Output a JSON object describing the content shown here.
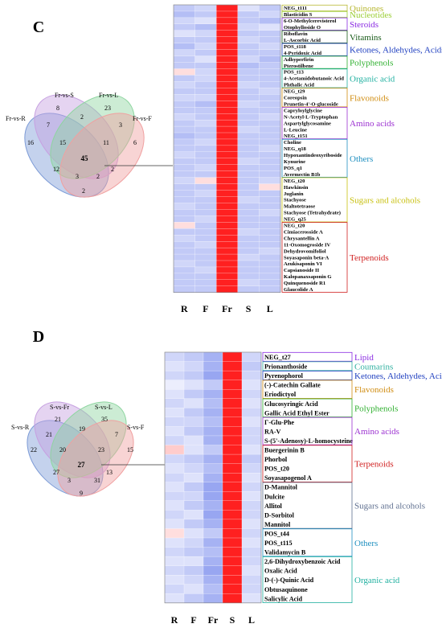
{
  "panels": [
    {
      "letter": "C",
      "venn": {
        "sets": [
          "Fr-vs-R",
          "Fr-vs-S",
          "Fr-vs-L",
          "Fr-vs-F"
        ],
        "colors": [
          "#7d9bd6",
          "#c6a0e0",
          "#8ed5a0",
          "#f0a0a0"
        ],
        "counts": {
          "R": 16,
          "S": 8,
          "L": 23,
          "F": 6,
          "RS": 7,
          "SL": 2,
          "LF": 3,
          "RSL": 15,
          "SLF": 11,
          "RF": 2,
          "RL": 2,
          "RSLF": 45,
          "RSF": 12,
          "RLF": 2,
          "RLF2": 3
        },
        "count_layout": [
          {
            "k": "R",
            "v": "16"
          },
          {
            "k": "S",
            "v": "8"
          },
          {
            "k": "L",
            "v": "23"
          },
          {
            "k": "F",
            "v": "6"
          },
          {
            "k": "RS",
            "v": "7"
          },
          {
            "k": "SL",
            "v": "2"
          },
          {
            "k": "LF",
            "v": "3"
          },
          {
            "k": "RSL",
            "v": "15"
          },
          {
            "k": "SLF",
            "v": "11"
          },
          {
            "k": "RSLF",
            "v": "45"
          },
          {
            "k": "RF",
            "v": "12"
          },
          {
            "k": "RLF",
            "v": "2"
          },
          {
            "k": "SF",
            "v": "3"
          },
          {
            "k": "SLF2",
            "v": "2"
          },
          {
            "k": "RLB",
            "v": "2"
          }
        ]
      },
      "columns": [
        "R",
        "F",
        "Fr",
        "S",
        "L"
      ],
      "rows": [
        "NEG_t111",
        "Blasticidin S",
        "6-O-Methylcerevisterol",
        "Otophylloside O",
        "Riboflavin",
        "L-Ascorbic Acid",
        "POS_t118",
        "4-Pyridoxic Acid",
        "Adhyperfirin",
        "Pterostilbene",
        "POS_t13",
        "4-Acetamidobutanoic Acid",
        "Phthalic Acid",
        "NEG_t29",
        "Coreopsin",
        "Prunetin-4'-O-glucoside",
        "Capryloylglycine",
        "N-Acetyl-L-Tryptophan",
        "Aspartylglycosamine",
        "L-Leucine",
        "NEG_t151",
        "Choline",
        "NEG_q18",
        "Hypoxantindeoxyriboside",
        "Kynurine",
        "POS_q1",
        "Avermectin B1b",
        "NEG_t20",
        "Hawkinsin",
        "Juglanin",
        "Stachyose",
        "Maltotetraose",
        "Stachyose (Tetrahydrate)",
        "NEG_q25",
        "NEG_t20",
        "Cimiacerosside A",
        "Chrysantellin A",
        "11-Oxomogroside IV",
        "Dehydrovomifoliol",
        "Soyasaponin beta-A",
        "Azukisaponin VI",
        "Capsianoside II",
        "Kalopanaxsaponin G",
        "Quinquenoside R1",
        "Glaucolide A"
      ],
      "groups": [
        {
          "label": "Quinones",
          "color": "#b8b832",
          "start": 0,
          "end": 0
        },
        {
          "label": "Nucleotides",
          "color": "#9acd32",
          "start": 1,
          "end": 1
        },
        {
          "label": "Steroids",
          "color": "#8a2be2",
          "start": 2,
          "end": 3
        },
        {
          "label": "Vitamins",
          "color": "#1a5c1a",
          "start": 4,
          "end": 5
        },
        {
          "label": "Ketones, Aldehydes, Acids",
          "color": "#2040c0",
          "start": 6,
          "end": 7
        },
        {
          "label": "Polyphenols",
          "color": "#30b030",
          "start": 8,
          "end": 9
        },
        {
          "label": "Organic acid",
          "color": "#20b0a0",
          "start": 10,
          "end": 12
        },
        {
          "label": "Flavonoids",
          "color": "#d08c10",
          "start": 13,
          "end": 15
        },
        {
          "label": "Amino acids",
          "color": "#9b30d0",
          "start": 16,
          "end": 20
        },
        {
          "label": "Others",
          "color": "#2090c0",
          "start": 21,
          "end": 26
        },
        {
          "label": "Sugars and alcohols",
          "color": "#c8c010",
          "start": 27,
          "end": 33
        },
        {
          "label": "Terpenoids",
          "color": "#d02020",
          "start": 34,
          "end": 44
        }
      ],
      "hot_column": 2
    },
    {
      "letter": "D",
      "venn": {
        "sets": [
          "S-vs-R",
          "S-vs-Fr",
          "S-vs-L",
          "S-vs-F"
        ],
        "colors": [
          "#7d9bd6",
          "#c6a0e0",
          "#8ed5a0",
          "#f0a0a0"
        ],
        "count_layout": [
          {
            "k": "R",
            "v": "22"
          },
          {
            "k": "S",
            "v": "21"
          },
          {
            "k": "L",
            "v": "35"
          },
          {
            "k": "F",
            "v": "15"
          },
          {
            "k": "RS",
            "v": "21"
          },
          {
            "k": "SL",
            "v": "19"
          },
          {
            "k": "LF",
            "v": "7"
          },
          {
            "k": "RSL",
            "v": "20"
          },
          {
            "k": "SLF",
            "v": "23"
          },
          {
            "k": "RSLF",
            "v": "27"
          },
          {
            "k": "RF",
            "v": "27"
          },
          {
            "k": "RLF",
            "v": "31"
          },
          {
            "k": "SF",
            "v": "13"
          },
          {
            "k": "SLF2",
            "v": "3"
          },
          {
            "k": "RLB",
            "v": "9"
          }
        ]
      },
      "columns": [
        "R",
        "F",
        "Fr",
        "S",
        "L"
      ],
      "rows": [
        "NEG_t27",
        "Prionanthoside",
        "Pyrenophorol",
        "(-)-Catechin Gallate",
        "Eriodictyol",
        "Glucosyringic Acid",
        "Gallic Acid Ethyl Ester",
        "Γ-Glu-Phe",
        "RA-V",
        "S-(5'-Adenosy)-L-homocysteine",
        "Buergerinin B",
        "Phorbol",
        "POS_t20",
        "Soyasapogenol A",
        "D-Mannitol",
        "Dulcite",
        "Allitol",
        "D-Sorbitol",
        "Mannitol",
        "POS_t44",
        "POS_t115",
        "Validamycin B",
        "2,6-Dihydroxybenzoic Acid",
        "Oxalic Acid",
        "D-(-)-Quinic Acid",
        "Obtusaquinone",
        "Salicylic Acid"
      ],
      "groups": [
        {
          "label": "Lipid",
          "color": "#8a2be2",
          "start": 0,
          "end": 0
        },
        {
          "label": "Coumarins",
          "color": "#30b0a0",
          "start": 1,
          "end": 1
        },
        {
          "label": "Ketones, Aldehydes, Acids",
          "color": "#2040c0",
          "start": 2,
          "end": 2
        },
        {
          "label": "Flavonoids",
          "color": "#d08c10",
          "start": 3,
          "end": 4
        },
        {
          "label": "Polyphenols",
          "color": "#30b030",
          "start": 5,
          "end": 6
        },
        {
          "label": "Amino acids",
          "color": "#9b30d0",
          "start": 7,
          "end": 9
        },
        {
          "label": "Terpenoids",
          "color": "#d02020",
          "start": 10,
          "end": 13
        },
        {
          "label": "Sugars and alcohols",
          "color": "#607090",
          "start": 14,
          "end": 18
        },
        {
          "label": "Others",
          "color": "#2090c0",
          "start": 19,
          "end": 21
        },
        {
          "label": "Organic acid",
          "color": "#20b0a0",
          "start": 22,
          "end": 26
        }
      ],
      "hot_column": 3
    }
  ],
  "chart_data": [
    {
      "type": "heatmap",
      "title": "C",
      "x": [
        "R",
        "F",
        "Fr",
        "S",
        "L"
      ],
      "y_count": 45,
      "note_values": "Fr column uniformly highest (red); others low (blue/white)",
      "values": [
        [
          0.3,
          0.35,
          1,
          0.4,
          0.3
        ],
        [
          0.25,
          0.3,
          1,
          0.3,
          0.35
        ],
        [
          0.35,
          0.4,
          1,
          0.3,
          0.25
        ],
        [
          0.3,
          0.25,
          1,
          0.35,
          0.4
        ],
        [
          0.4,
          0.35,
          1,
          0.3,
          0.3
        ],
        [
          0.3,
          0.3,
          1,
          0.35,
          0.3
        ],
        [
          0.25,
          0.35,
          1,
          0.3,
          0.35
        ],
        [
          0.35,
          0.3,
          1,
          0.3,
          0.3
        ],
        [
          0.3,
          0.4,
          1,
          0.35,
          0.25
        ],
        [
          0.3,
          0.3,
          1,
          0.25,
          0.3
        ],
        [
          0.55,
          0.35,
          1,
          0.3,
          0.3
        ],
        [
          0.3,
          0.35,
          1,
          0.3,
          0.3
        ],
        [
          0.35,
          0.3,
          1,
          0.35,
          0.3
        ],
        [
          0.3,
          0.3,
          1,
          0.3,
          0.35
        ],
        [
          0.35,
          0.35,
          1,
          0.3,
          0.3
        ],
        [
          0.3,
          0.25,
          1,
          0.35,
          0.3
        ],
        [
          0.3,
          0.3,
          1,
          0.3,
          0.3
        ],
        [
          0.35,
          0.3,
          1,
          0.3,
          0.35
        ],
        [
          0.3,
          0.35,
          1,
          0.3,
          0.3
        ],
        [
          0.3,
          0.3,
          1,
          0.35,
          0.3
        ],
        [
          0.25,
          0.3,
          1,
          0.3,
          0.3
        ],
        [
          0.3,
          0.35,
          1,
          0.3,
          0.3
        ],
        [
          0.3,
          0.3,
          1,
          0.3,
          0.35
        ],
        [
          0.35,
          0.3,
          1,
          0.3,
          0.3
        ],
        [
          0.3,
          0.3,
          1,
          0.35,
          0.3
        ],
        [
          0.3,
          0.35,
          1,
          0.3,
          0.3
        ],
        [
          0.3,
          0.3,
          1,
          0.3,
          0.3
        ],
        [
          0.35,
          0.55,
          1,
          0.3,
          0.35
        ],
        [
          0.3,
          0.3,
          1,
          0.3,
          0.55
        ],
        [
          0.3,
          0.35,
          1,
          0.3,
          0.3
        ],
        [
          0.3,
          0.3,
          1,
          0.35,
          0.3
        ],
        [
          0.35,
          0.3,
          1,
          0.3,
          0.3
        ],
        [
          0.3,
          0.3,
          1,
          0.3,
          0.35
        ],
        [
          0.3,
          0.35,
          1,
          0.3,
          0.3
        ],
        [
          0.55,
          0.3,
          1,
          0.3,
          0.3
        ],
        [
          0.3,
          0.3,
          1,
          0.35,
          0.3
        ],
        [
          0.35,
          0.3,
          1,
          0.3,
          0.3
        ],
        [
          0.3,
          0.35,
          1,
          0.3,
          0.3
        ],
        [
          0.3,
          0.3,
          1,
          0.3,
          0.35
        ],
        [
          0.3,
          0.3,
          1,
          0.35,
          0.3
        ],
        [
          0.35,
          0.3,
          1,
          0.3,
          0.3
        ],
        [
          0.3,
          0.35,
          1,
          0.3,
          0.3
        ],
        [
          0.3,
          0.3,
          1,
          0.3,
          0.3
        ],
        [
          0.3,
          0.3,
          1,
          0.35,
          0.3
        ],
        [
          0.3,
          0.3,
          1,
          0.3,
          0.3
        ]
      ]
    },
    {
      "type": "heatmap",
      "title": "D",
      "x": [
        "R",
        "F",
        "Fr",
        "S",
        "L"
      ],
      "y_count": 27,
      "note_values": "S column uniformly highest (red); others low (blue/white)",
      "values": [
        [
          0.35,
          0.3,
          0.2,
          1,
          0.35
        ],
        [
          0.4,
          0.35,
          0.2,
          1,
          0.3
        ],
        [
          0.35,
          0.3,
          0.15,
          1,
          0.35
        ],
        [
          0.45,
          0.4,
          0.3,
          1,
          0.4
        ],
        [
          0.4,
          0.3,
          0.2,
          1,
          0.35
        ],
        [
          0.35,
          0.4,
          0.25,
          1,
          0.4
        ],
        [
          0.4,
          0.3,
          0.2,
          1,
          0.35
        ],
        [
          0.35,
          0.35,
          0.25,
          1,
          0.4
        ],
        [
          0.4,
          0.3,
          0.2,
          1,
          0.35
        ],
        [
          0.35,
          0.4,
          0.2,
          1,
          0.35
        ],
        [
          0.6,
          0.4,
          0.3,
          1,
          0.4
        ],
        [
          0.35,
          0.3,
          0.2,
          1,
          0.3
        ],
        [
          0.4,
          0.35,
          0.25,
          1,
          0.35
        ],
        [
          0.35,
          0.4,
          0.2,
          1,
          0.4
        ],
        [
          0.4,
          0.3,
          0.15,
          1,
          0.35
        ],
        [
          0.35,
          0.35,
          0.15,
          1,
          0.4
        ],
        [
          0.4,
          0.3,
          0.2,
          1,
          0.35
        ],
        [
          0.35,
          0.4,
          0.15,
          1,
          0.35
        ],
        [
          0.4,
          0.3,
          0.2,
          1,
          0.4
        ],
        [
          0.55,
          0.4,
          0.3,
          1,
          0.35
        ],
        [
          0.4,
          0.35,
          0.2,
          1,
          0.4
        ],
        [
          0.35,
          0.3,
          0.25,
          1,
          0.35
        ],
        [
          0.4,
          0.4,
          0.2,
          1,
          0.35
        ],
        [
          0.35,
          0.3,
          0.15,
          1,
          0.4
        ],
        [
          0.4,
          0.35,
          0.2,
          1,
          0.35
        ],
        [
          0.35,
          0.4,
          0.25,
          1,
          0.35
        ],
        [
          0.4,
          0.3,
          0.2,
          1,
          0.4
        ]
      ]
    }
  ]
}
